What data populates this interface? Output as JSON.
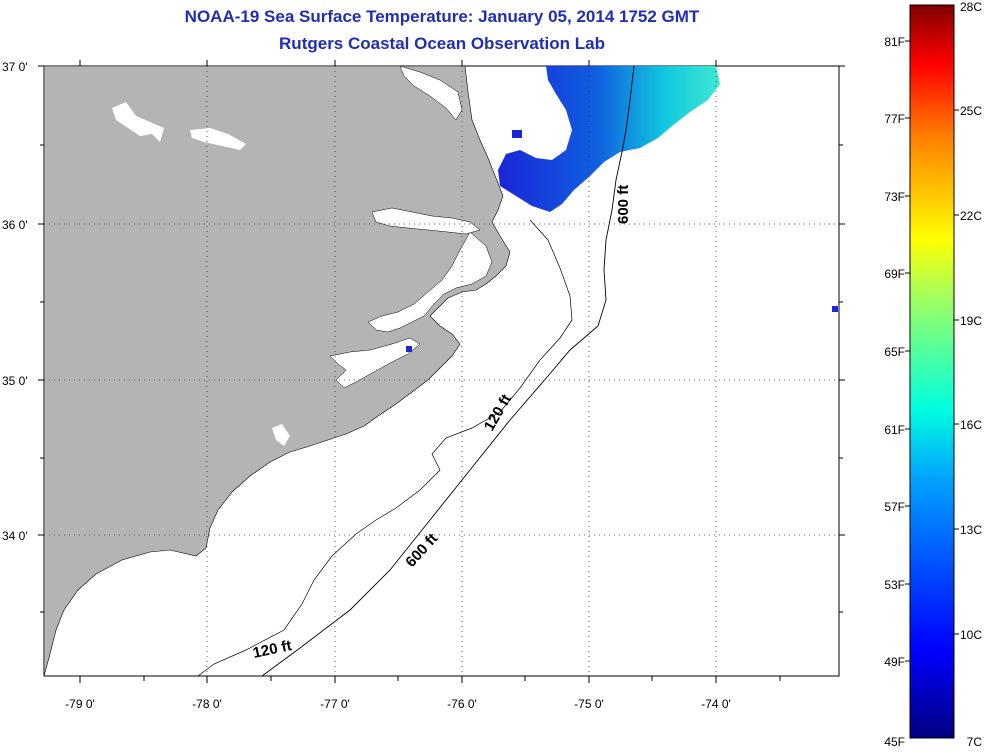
{
  "title": "NOAA-19 Sea Surface Temperature:  January 05, 2014 1752 GMT",
  "subtitle": "Rutgers Coastal Ocean Observation Lab",
  "map": {
    "lon_range": [
      -79.3,
      -73.2
    ],
    "lat_range": [
      33.1,
      37.0
    ],
    "lat_ticks": [
      "37 0'",
      "36 0'",
      "35 0'",
      "34 0'"
    ],
    "lon_ticks": [
      "-79 0'",
      "-78 0'",
      "-77 0'",
      "-76 0'",
      "-75 0'",
      "-74 0'"
    ],
    "contour_labels": [
      "600 ft",
      "120 ft",
      "600 ft",
      "120 ft"
    ],
    "land_color": "#b4b4b4",
    "water_color": "#ffffff"
  },
  "colorbar": {
    "fahrenheit_labels": [
      "81F",
      "77F",
      "73F",
      "69F",
      "65F",
      "61F",
      "57F",
      "53F",
      "49F",
      "45F"
    ],
    "celsius_labels": [
      "28C",
      "25C",
      "22C",
      "19C",
      "16C",
      "13C",
      "10C",
      "7C"
    ],
    "range_f": [
      45,
      83
    ],
    "range_c": [
      7,
      28
    ],
    "colormap": "jet"
  }
}
